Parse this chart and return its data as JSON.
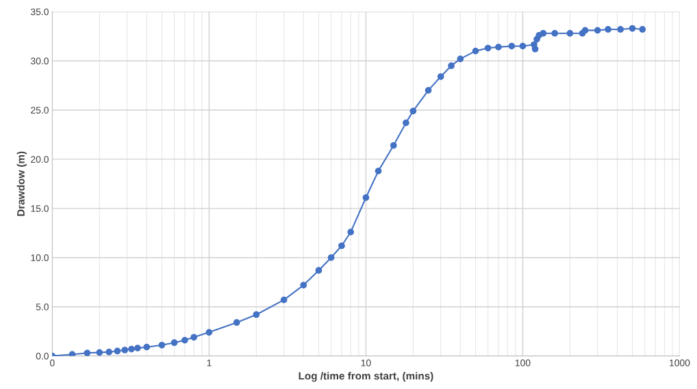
{
  "chart_data": {
    "type": "line",
    "xlabel": "Log /time from start, (mins)",
    "ylabel": "Drawdow (m)",
    "log": "x",
    "grid": true,
    "marker": "circle",
    "line_style": "solid",
    "xlim": [
      0.1,
      1000
    ],
    "xticks": [
      {
        "value": 0.1,
        "label": "0"
      },
      1,
      10,
      100,
      1000
    ],
    "ylim": [
      0,
      35
    ],
    "yticks": [
      {
        "value": 0,
        "label": "0.0"
      },
      {
        "value": 5,
        "label": "5.0"
      },
      {
        "value": 10,
        "label": "10.0"
      },
      {
        "value": 15,
        "label": "15.0"
      },
      {
        "value": 20,
        "label": "20.0"
      },
      {
        "value": 25,
        "label": "25.0"
      },
      {
        "value": 30,
        "label": "30.0"
      },
      {
        "value": 35,
        "label": "35.0"
      }
    ],
    "series": [
      {
        "color": "#4472c4",
        "x": [
          0.1,
          0.134,
          0.167,
          0.2,
          0.23,
          0.26,
          0.29,
          0.32,
          0.35,
          0.4,
          0.5,
          0.6,
          0.7,
          0.8,
          1,
          1.5,
          2,
          3,
          4,
          5,
          6,
          7,
          8,
          10,
          12,
          15,
          18,
          20,
          25,
          30,
          35,
          40,
          50,
          60,
          70,
          85,
          100,
          118,
          120,
          123,
          127,
          135,
          160,
          200,
          240,
          250,
          300,
          350,
          420,
          500,
          580
        ],
        "values": [
          0.0,
          0.15,
          0.3,
          0.35,
          0.4,
          0.5,
          0.6,
          0.7,
          0.8,
          0.9,
          1.1,
          1.35,
          1.6,
          1.9,
          2.4,
          3.4,
          4.2,
          5.7,
          7.2,
          8.7,
          10.0,
          11.2,
          12.6,
          16.1,
          18.8,
          21.4,
          23.7,
          24.9,
          27.0,
          28.4,
          29.5,
          30.2,
          31.0,
          31.3,
          31.4,
          31.5,
          31.5,
          31.65,
          31.2,
          32.2,
          32.6,
          32.8,
          32.8,
          32.8,
          32.8,
          33.1,
          33.1,
          33.2,
          33.2,
          33.3,
          33.2
        ]
      }
    ]
  }
}
